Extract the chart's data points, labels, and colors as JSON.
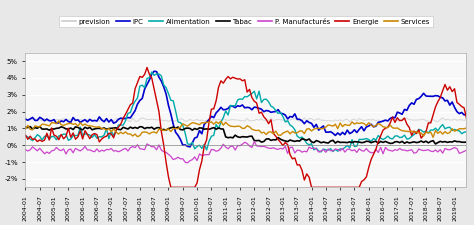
{
  "title": "",
  "legend_labels": [
    "prevision",
    "IPC",
    "Alimentation",
    "Tabac",
    "P. Manufacturés",
    "Energie",
    "Services"
  ],
  "legend_colors": [
    "#cccccc",
    "#0000cc",
    "#00aaaa",
    "#000000",
    "#cc44cc",
    "#cc0000",
    "#cc8800"
  ],
  "legend_styles": [
    "solid",
    "solid",
    "solid",
    "solid",
    "solid",
    "solid",
    "solid"
  ],
  "ylim": [
    -2.5,
    5.5
  ],
  "yticks": [
    -2,
    -1,
    0,
    1,
    2,
    3,
    4,
    5
  ],
  "ytick_labels": [
    "-2%",
    "-1%",
    "0%",
    "1%",
    "2%",
    "3%",
    "4%",
    "5%"
  ],
  "background_color": "#f0f0f0",
  "plot_bg_color": "#f8f8f8",
  "grid_color": "#ffffff"
}
